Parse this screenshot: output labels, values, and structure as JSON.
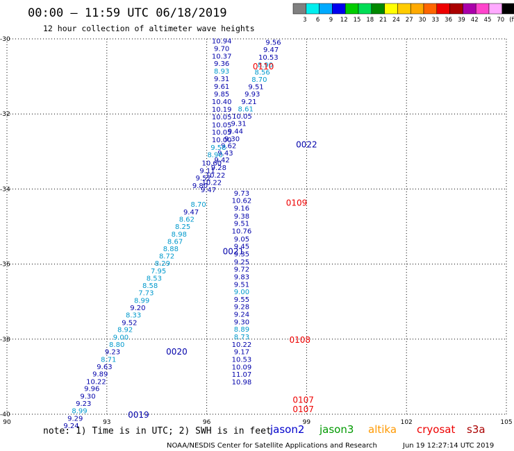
{
  "header": {
    "title": "00:00 – 11:59 UTC 06/18/2019",
    "subtitle": "12 hour collection of altimeter wave heights"
  },
  "colorbar": {
    "labels": [
      "3",
      "6",
      "9",
      "12",
      "15",
      "18",
      "21",
      "24",
      "27",
      "30",
      "33",
      "36",
      "39",
      "42",
      "45",
      "70",
      "(ft)"
    ],
    "colors": [
      "#808080",
      "#00eeee",
      "#00aaff",
      "#0000ee",
      "#00cc00",
      "#00dd55",
      "#008800",
      "#ffff00",
      "#ffcc00",
      "#ffaa00",
      "#ff6600",
      "#ee0000",
      "#aa0000",
      "#aa00aa",
      "#ff44cc",
      "#ffaaff",
      "#000000"
    ]
  },
  "footer": {
    "note": "note: 1) Time is in UTC; 2) SWH is in feet",
    "satellites": [
      {
        "name": "jason2",
        "color": "#0000cc"
      },
      {
        "name": "jason3",
        "color": "#009900"
      },
      {
        "name": "altika",
        "color": "#ff9900"
      },
      {
        "name": "cryosat",
        "color": "#ee0000"
      },
      {
        "name": "s3a",
        "color": "#aa0000"
      }
    ],
    "credit": "NOAA/NESDIS Center for Satellite Applications and Research",
    "timestamp": "Jun 19 12:27:14 UTC 2019"
  },
  "chart_data": {
    "type": "scatter",
    "xlim": [
      90,
      105
    ],
    "ylim": [
      -40,
      -30
    ],
    "x_ticks": [
      "90",
      "93",
      "96",
      "99",
      "102",
      "105"
    ],
    "y_ticks": [
      "-30",
      "-32",
      "-34",
      "-36",
      "-38",
      "-40"
    ],
    "colors": {
      "navy": "#0000aa",
      "cyan": "#0099cc",
      "red": "#ee0000"
    },
    "passes": [
      {
        "label": "0110",
        "x": 97.7,
        "y": -30.72,
        "color": "red"
      },
      {
        "label": "0022",
        "x": 99.0,
        "y": -32.8,
        "color": "navy"
      },
      {
        "label": "0109",
        "x": 98.7,
        "y": -34.35,
        "color": "red"
      },
      {
        "label": "0021",
        "x": 96.8,
        "y": -35.65,
        "color": "navy"
      },
      {
        "label": "0108",
        "x": 98.8,
        "y": -38.0,
        "color": "red"
      },
      {
        "label": "0020",
        "x": 95.1,
        "y": -38.32,
        "color": "navy"
      },
      {
        "label": "0107",
        "x": 98.9,
        "y": -39.6,
        "color": "red"
      },
      {
        "label": "0107",
        "x": 98.9,
        "y": -39.85,
        "color": "red"
      },
      {
        "label": "0019",
        "x": 93.95,
        "y": -40.0,
        "color": "navy"
      }
    ],
    "tracks": [
      {
        "name": "descending",
        "color": "navy",
        "points": [
          {
            "x": 98.0,
            "y": -30.08,
            "v": "9.56",
            "c": "navy"
          },
          {
            "x": 97.93,
            "y": -30.28,
            "v": "9.47",
            "c": "navy"
          },
          {
            "x": 97.85,
            "y": -30.48,
            "v": "10.53",
            "c": "navy"
          },
          {
            "x": 97.76,
            "y": -30.68,
            "v": "8.90",
            "c": "cyan"
          },
          {
            "x": 97.67,
            "y": -30.88,
            "v": "8.56",
            "c": "cyan"
          },
          {
            "x": 97.58,
            "y": -31.07,
            "v": "8.70",
            "c": "cyan"
          },
          {
            "x": 97.48,
            "y": -31.27,
            "v": "9.51",
            "c": "navy"
          },
          {
            "x": 97.37,
            "y": -31.46,
            "v": "9.93",
            "c": "navy"
          },
          {
            "x": 97.27,
            "y": -31.66,
            "v": "9.21",
            "c": "navy"
          },
          {
            "x": 97.17,
            "y": -31.86,
            "v": "8.61",
            "c": "cyan"
          },
          {
            "x": 97.06,
            "y": -32.05,
            "v": "10.05",
            "c": "navy"
          },
          {
            "x": 96.96,
            "y": -32.25,
            "v": "9.31",
            "c": "navy"
          },
          {
            "x": 96.86,
            "y": -32.45,
            "v": "9.44",
            "c": "navy"
          },
          {
            "x": 96.76,
            "y": -32.65,
            "v": "9.30",
            "c": "navy"
          },
          {
            "x": 96.66,
            "y": -32.84,
            "v": "9.62",
            "c": "navy"
          },
          {
            "x": 96.56,
            "y": -33.03,
            "v": "9.43",
            "c": "navy"
          },
          {
            "x": 96.46,
            "y": -33.22,
            "v": "9.42",
            "c": "navy"
          },
          {
            "x": 96.36,
            "y": -33.42,
            "v": "9.28",
            "c": "navy"
          },
          {
            "x": 96.26,
            "y": -33.62,
            "v": "10.22",
            "c": "navy"
          },
          {
            "x": 96.15,
            "y": -33.82,
            "v": "10.22",
            "c": "navy"
          },
          {
            "x": 96.05,
            "y": -34.01,
            "v": "9.47",
            "c": "navy"
          },
          {
            "x": 95.75,
            "y": -34.4,
            "v": "8.70",
            "c": "cyan"
          },
          {
            "x": 95.53,
            "y": -34.6,
            "v": "9.47",
            "c": "navy"
          },
          {
            "x": 95.4,
            "y": -34.8,
            "v": "8.62",
            "c": "cyan"
          },
          {
            "x": 95.28,
            "y": -34.99,
            "v": "8.25",
            "c": "cyan"
          },
          {
            "x": 95.17,
            "y": -35.19,
            "v": "8.98",
            "c": "cyan"
          },
          {
            "x": 95.05,
            "y": -35.39,
            "v": "8.67",
            "c": "cyan"
          },
          {
            "x": 94.92,
            "y": -35.58,
            "v": "8.88",
            "c": "cyan"
          },
          {
            "x": 94.8,
            "y": -35.78,
            "v": "8.72",
            "c": "cyan"
          },
          {
            "x": 94.67,
            "y": -35.97,
            "v": "8.29",
            "c": "cyan"
          },
          {
            "x": 94.55,
            "y": -36.17,
            "v": "7.95",
            "c": "cyan"
          },
          {
            "x": 94.42,
            "y": -36.37,
            "v": "8.53",
            "c": "cyan"
          },
          {
            "x": 94.3,
            "y": -36.56,
            "v": "8.58",
            "c": "cyan"
          },
          {
            "x": 94.18,
            "y": -36.76,
            "v": "7.73",
            "c": "cyan"
          },
          {
            "x": 94.05,
            "y": -36.96,
            "v": "8.99",
            "c": "cyan"
          },
          {
            "x": 93.93,
            "y": -37.15,
            "v": "9.20",
            "c": "navy"
          },
          {
            "x": 93.8,
            "y": -37.35,
            "v": "8.33",
            "c": "cyan"
          },
          {
            "x": 93.68,
            "y": -37.55,
            "v": "9.52",
            "c": "navy"
          },
          {
            "x": 93.55,
            "y": -37.74,
            "v": "8.92",
            "c": "cyan"
          },
          {
            "x": 93.42,
            "y": -37.94,
            "v": "9.00",
            "c": "cyan"
          },
          {
            "x": 93.3,
            "y": -38.13,
            "v": "8.80",
            "c": "cyan"
          },
          {
            "x": 93.17,
            "y": -38.33,
            "v": "9.23",
            "c": "navy"
          },
          {
            "x": 93.05,
            "y": -38.53,
            "v": "8.71",
            "c": "cyan"
          },
          {
            "x": 92.93,
            "y": -38.72,
            "v": "9.63",
            "c": "navy"
          },
          {
            "x": 92.8,
            "y": -38.92,
            "v": "9.89",
            "c": "navy"
          },
          {
            "x": 92.68,
            "y": -39.12,
            "v": "10.22",
            "c": "navy"
          },
          {
            "x": 92.55,
            "y": -39.31,
            "v": "9.96",
            "c": "navy"
          },
          {
            "x": 92.43,
            "y": -39.51,
            "v": "9.30",
            "c": "navy"
          },
          {
            "x": 92.3,
            "y": -39.7,
            "v": "9.23",
            "c": "navy"
          },
          {
            "x": 92.18,
            "y": -39.9,
            "v": "8.99",
            "c": "cyan"
          },
          {
            "x": 92.05,
            "y": -40.1,
            "v": "9.29",
            "c": "navy"
          },
          {
            "x": 91.93,
            "y": -40.3,
            "v": "9.24",
            "c": "navy"
          }
        ]
      },
      {
        "name": "ascending",
        "color": "navy",
        "points": [
          {
            "x": 96.45,
            "y": -30.05,
            "v": "10.94",
            "c": "navy"
          },
          {
            "x": 96.45,
            "y": -30.25,
            "v": "9.70",
            "c": "navy"
          },
          {
            "x": 96.45,
            "y": -30.45,
            "v": "10.37",
            "c": "navy"
          },
          {
            "x": 96.45,
            "y": -30.65,
            "v": "9.36",
            "c": "navy"
          },
          {
            "x": 96.45,
            "y": -30.85,
            "v": "8.93",
            "c": "cyan"
          },
          {
            "x": 96.45,
            "y": -31.05,
            "v": "9.31",
            "c": "navy"
          },
          {
            "x": 96.45,
            "y": -31.26,
            "v": "9.61",
            "c": "navy"
          },
          {
            "x": 96.45,
            "y": -31.46,
            "v": "9.85",
            "c": "navy"
          },
          {
            "x": 96.45,
            "y": -31.66,
            "v": "10.40",
            "c": "navy"
          },
          {
            "x": 96.45,
            "y": -31.87,
            "v": "10.19",
            "c": "navy"
          },
          {
            "x": 96.45,
            "y": -32.07,
            "v": "10.05",
            "c": "navy"
          },
          {
            "x": 96.45,
            "y": -32.28,
            "v": "10.05",
            "c": "navy"
          },
          {
            "x": 96.45,
            "y": -32.48,
            "v": "10.05",
            "c": "navy"
          },
          {
            "x": 96.45,
            "y": -32.68,
            "v": "10.00",
            "c": "navy"
          },
          {
            "x": 96.35,
            "y": -32.88,
            "v": "9.58",
            "c": "cyan"
          },
          {
            "x": 96.25,
            "y": -33.08,
            "v": "8.90",
            "c": "cyan"
          },
          {
            "x": 96.15,
            "y": -33.3,
            "v": "10.60",
            "c": "navy"
          },
          {
            "x": 96.02,
            "y": -33.5,
            "v": "9.11",
            "c": "navy"
          },
          {
            "x": 95.9,
            "y": -33.7,
            "v": "9.52",
            "c": "navy"
          },
          {
            "x": 95.8,
            "y": -33.9,
            "v": "9.80",
            "c": "navy"
          },
          {
            "x": 97.05,
            "y": -34.1,
            "v": "9.73",
            "c": "navy"
          },
          {
            "x": 97.05,
            "y": -34.3,
            "v": "10.62",
            "c": "navy"
          },
          {
            "x": 97.05,
            "y": -34.5,
            "v": "9.16",
            "c": "navy"
          },
          {
            "x": 97.05,
            "y": -34.71,
            "v": "9.38",
            "c": "navy"
          },
          {
            "x": 97.05,
            "y": -34.91,
            "v": "9.51",
            "c": "navy"
          },
          {
            "x": 97.05,
            "y": -35.11,
            "v": "10.76",
            "c": "navy"
          },
          {
            "x": 97.05,
            "y": -35.32,
            "v": "9.05",
            "c": "navy"
          },
          {
            "x": 97.05,
            "y": -35.52,
            "v": "9.45",
            "c": "navy"
          },
          {
            "x": 97.05,
            "y": -35.72,
            "v": "9.35",
            "c": "navy"
          },
          {
            "x": 97.05,
            "y": -35.93,
            "v": "9.25",
            "c": "navy"
          },
          {
            "x": 97.05,
            "y": -36.13,
            "v": "9.72",
            "c": "navy"
          },
          {
            "x": 97.05,
            "y": -36.33,
            "v": "9.83",
            "c": "navy"
          },
          {
            "x": 97.05,
            "y": -36.53,
            "v": "9.51",
            "c": "navy"
          },
          {
            "x": 97.05,
            "y": -36.73,
            "v": "9.00",
            "c": "cyan"
          },
          {
            "x": 97.05,
            "y": -36.93,
            "v": "9.55",
            "c": "navy"
          },
          {
            "x": 97.05,
            "y": -37.13,
            "v": "9.28",
            "c": "navy"
          },
          {
            "x": 97.05,
            "y": -37.33,
            "v": "9.24",
            "c": "navy"
          },
          {
            "x": 97.05,
            "y": -37.53,
            "v": "9.30",
            "c": "navy"
          },
          {
            "x": 97.05,
            "y": -37.73,
            "v": "8.89",
            "c": "cyan"
          },
          {
            "x": 97.05,
            "y": -37.93,
            "v": "8.73",
            "c": "cyan"
          },
          {
            "x": 97.05,
            "y": -38.13,
            "v": "10.22",
            "c": "navy"
          },
          {
            "x": 97.05,
            "y": -38.33,
            "v": "9.17",
            "c": "navy"
          },
          {
            "x": 97.05,
            "y": -38.53,
            "v": "10.53",
            "c": "navy"
          },
          {
            "x": 97.05,
            "y": -38.73,
            "v": "10.09",
            "c": "navy"
          },
          {
            "x": 97.05,
            "y": -38.93,
            "v": "11.07",
            "c": "navy"
          },
          {
            "x": 97.05,
            "y": -39.13,
            "v": "10.98",
            "c": "navy"
          }
        ]
      }
    ]
  }
}
